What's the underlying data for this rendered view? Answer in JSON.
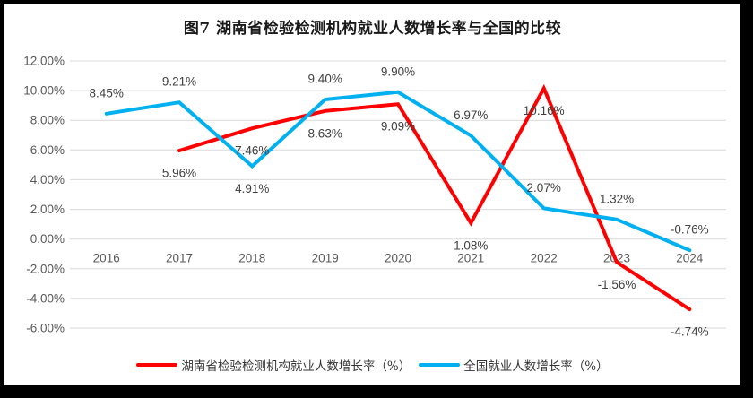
{
  "page": {
    "frame_color": "#000000",
    "panel_color": "#ffffff"
  },
  "chart_data": {
    "type": "line",
    "title": "图7 湖南省检验检测机构就业人数增长率与全国的比较",
    "categories": [
      "2016",
      "2017",
      "2018",
      "2019",
      "2020",
      "2021",
      "2022",
      "2023",
      "2024"
    ],
    "series": [
      {
        "name": "湖南省检验检测机构就业人数增长率（%）",
        "color": "#FF0000",
        "values": [
          null,
          5.96,
          7.46,
          8.63,
          9.09,
          1.08,
          10.16,
          -1.56,
          -4.74
        ],
        "data_labels": [
          "",
          "5.96%",
          "7.46%",
          "8.63%",
          "9.09%",
          "1.08%",
          "10.16%",
          "-1.56%",
          "-4.74%"
        ],
        "label_position": "below",
        "label_position_overrides": {}
      },
      {
        "name": "全国就业人数增长率（%）",
        "color": "#00B0F0",
        "values": [
          8.45,
          9.21,
          4.91,
          9.4,
          9.9,
          6.97,
          2.07,
          1.32,
          -0.76
        ],
        "data_labels": [
          "8.45%",
          "9.21%",
          "4.91%",
          "9.40%",
          "9.90%",
          "6.97%",
          "2.07%",
          "1.32%",
          "-0.76%"
        ],
        "label_position": "above",
        "label_position_overrides": {
          "2": "below"
        }
      }
    ],
    "y_axis": {
      "min": -6,
      "max": 12,
      "step": 2,
      "tick_labels": [
        "12.00%",
        "10.00%",
        "8.00%",
        "6.00%",
        "4.00%",
        "2.00%",
        "0.00%",
        "-2.00%",
        "-4.00%",
        "-6.00%"
      ]
    },
    "x_axis": {
      "tick_labels": [
        "2016",
        "2017",
        "2018",
        "2019",
        "2020",
        "2021",
        "2022",
        "2023",
        "2024"
      ]
    },
    "grid": true,
    "gridline_color": "#D9D9D9",
    "axis_text_color": "#595959",
    "label_text_color": "#404040",
    "legend_position": "bottom",
    "line_width": 4
  }
}
